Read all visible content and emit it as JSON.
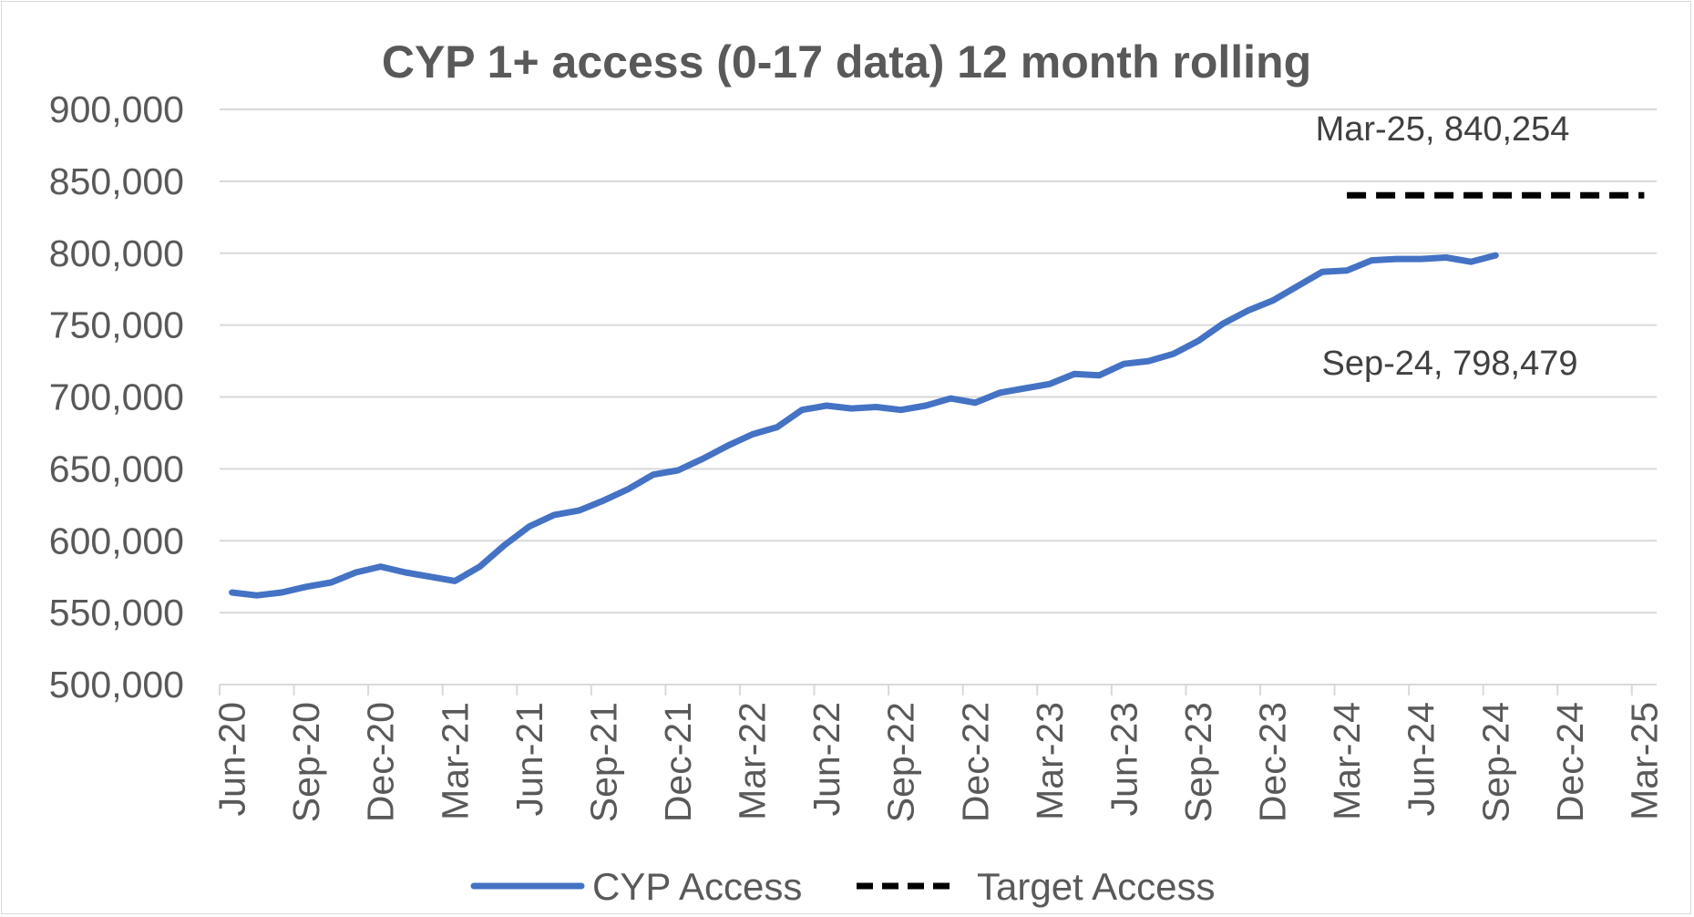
{
  "chart_data": {
    "type": "line",
    "title": "CYP 1+ access (0-17 data) 12 month rolling",
    "xlabel": "",
    "ylabel": "",
    "ylim": [
      500000,
      900000
    ],
    "y_ticks": [
      "900,000",
      "850,000",
      "800,000",
      "750,000",
      "700,000",
      "650,000",
      "600,000",
      "550,000",
      "500,000"
    ],
    "y_tick_values": [
      900000,
      850000,
      800000,
      750000,
      700000,
      650000,
      600000,
      550000,
      500000
    ],
    "gridlines": true,
    "x_tick_labels": [
      "Jun-20",
      "Sep-20",
      "Dec-20",
      "Mar-21",
      "Jun-21",
      "Sep-21",
      "Dec-21",
      "Mar-22",
      "Jun-22",
      "Sep-22",
      "Dec-22",
      "Mar-23",
      "Jun-23",
      "Sep-23",
      "Dec-23",
      "Mar-24",
      "Jun-24",
      "Sep-24",
      "Dec-24",
      "Mar-25"
    ],
    "n_months": 58,
    "legend_position": "bottom",
    "series": [
      {
        "name": "CYP Access",
        "color": "#4472c4",
        "style": "solid",
        "start_month_index": 0,
        "values": [
          564000,
          562000,
          564000,
          568000,
          571000,
          578000,
          582000,
          578000,
          575000,
          572000,
          582000,
          597000,
          610000,
          618000,
          621000,
          628000,
          636000,
          646000,
          649000,
          657000,
          666000,
          674000,
          679000,
          691000,
          694000,
          692000,
          693000,
          691000,
          694000,
          699000,
          696000,
          703000,
          706000,
          709000,
          716000,
          715000,
          723000,
          725000,
          730000,
          739000,
          751000,
          760000,
          767000,
          777000,
          787000,
          788000,
          795000,
          796000,
          796000,
          797000,
          794000,
          798479
        ]
      },
      {
        "name": "Target Access",
        "color": "#000000",
        "style": "dashed",
        "start_month_index": 45,
        "values": [
          840254,
          840254,
          840254,
          840254,
          840254,
          840254,
          840254,
          840254,
          840254,
          840254,
          840254,
          840254,
          840254
        ]
      }
    ],
    "annotations": [
      {
        "text": "Mar-25, 840,254",
        "series": "Target Access"
      },
      {
        "text": "Sep-24, 798,479",
        "series": "CYP Access"
      }
    ]
  }
}
